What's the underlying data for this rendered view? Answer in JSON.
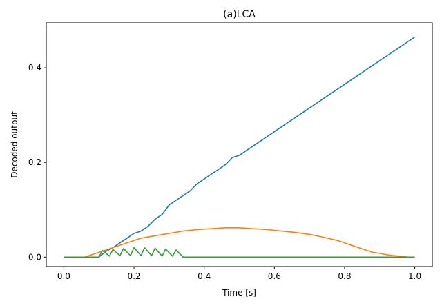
{
  "chart_data": {
    "type": "line",
    "title": "(a)LCA",
    "xlabel": "Time [s]",
    "ylabel": "Decoded output",
    "xlim": [
      -0.05,
      1.05
    ],
    "ylim": [
      -0.02,
      0.495
    ],
    "xticks": [
      0.0,
      0.2,
      0.4,
      0.6,
      0.8,
      1.0
    ],
    "xtick_labels": [
      "0.0",
      "0.2",
      "0.4",
      "0.6",
      "0.8",
      "1.0"
    ],
    "yticks": [
      0.0,
      0.2,
      0.4
    ],
    "ytick_labels": [
      "0.0",
      "0.2",
      "0.4"
    ],
    "grid": false,
    "legend": "none",
    "series": [
      {
        "color": "#1f77b4",
        "x": [
          0.0,
          0.1,
          0.12,
          0.14,
          0.16,
          0.18,
          0.2,
          0.22,
          0.24,
          0.26,
          0.28,
          0.3,
          0.32,
          0.34,
          0.36,
          0.38,
          0.4,
          0.42,
          0.44,
          0.46,
          0.48,
          0.5,
          0.52,
          0.54,
          0.56,
          0.58,
          0.6,
          0.62,
          0.64,
          0.66,
          0.68,
          0.7,
          0.72,
          0.74,
          0.76,
          0.78,
          0.8,
          0.82,
          0.84,
          0.86,
          0.88,
          0.9,
          0.92,
          0.94,
          0.96,
          0.98,
          1.0
        ],
        "values": [
          0.0,
          0.0,
          0.012,
          0.02,
          0.03,
          0.04,
          0.05,
          0.055,
          0.065,
          0.08,
          0.09,
          0.11,
          0.12,
          0.13,
          0.14,
          0.155,
          0.165,
          0.175,
          0.185,
          0.195,
          0.21,
          0.215,
          0.225,
          0.235,
          0.245,
          0.255,
          0.265,
          0.275,
          0.285,
          0.295,
          0.305,
          0.315,
          0.325,
          0.335,
          0.345,
          0.355,
          0.365,
          0.375,
          0.385,
          0.395,
          0.405,
          0.415,
          0.425,
          0.435,
          0.445,
          0.455,
          0.465
        ]
      },
      {
        "color": "#ff7f0e",
        "x": [
          0.0,
          0.06,
          0.1,
          0.14,
          0.18,
          0.22,
          0.26,
          0.3,
          0.34,
          0.38,
          0.42,
          0.46,
          0.5,
          0.54,
          0.58,
          0.62,
          0.66,
          0.7,
          0.74,
          0.78,
          0.8,
          0.82,
          0.84,
          0.86,
          0.88,
          0.9,
          0.92,
          0.94,
          0.96,
          0.98,
          1.0
        ],
        "values": [
          0.0,
          0.0,
          0.01,
          0.02,
          0.03,
          0.04,
          0.045,
          0.05,
          0.055,
          0.058,
          0.06,
          0.062,
          0.062,
          0.06,
          0.058,
          0.055,
          0.052,
          0.048,
          0.042,
          0.035,
          0.03,
          0.025,
          0.02,
          0.015,
          0.01,
          0.008,
          0.005,
          0.003,
          0.002,
          0.0,
          0.0
        ]
      },
      {
        "color": "#2ca02c",
        "x": [
          0.0,
          0.1,
          0.11,
          0.13,
          0.14,
          0.16,
          0.17,
          0.19,
          0.2,
          0.22,
          0.23,
          0.25,
          0.26,
          0.28,
          0.29,
          0.31,
          0.32,
          0.34,
          0.4,
          0.6,
          0.8,
          1.0
        ],
        "values": [
          0.0,
          0.0,
          0.014,
          0.002,
          0.016,
          0.003,
          0.018,
          0.003,
          0.02,
          0.003,
          0.02,
          0.003,
          0.019,
          0.002,
          0.017,
          0.002,
          0.015,
          0.0,
          0.0,
          0.0,
          0.0,
          0.0
        ]
      }
    ]
  }
}
